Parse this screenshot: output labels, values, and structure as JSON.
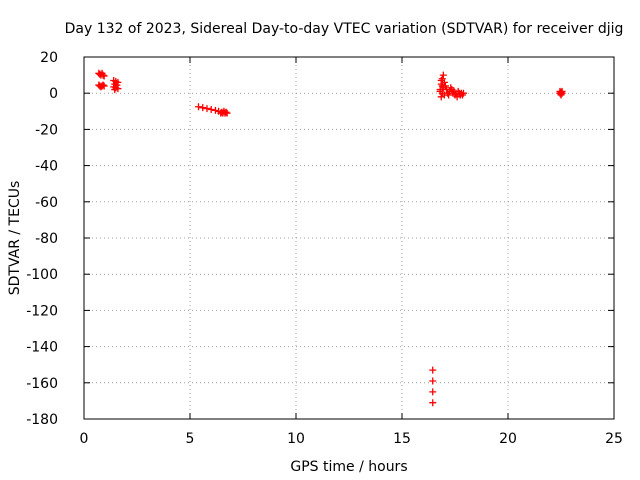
{
  "chart_data": {
    "type": "scatter",
    "title": "Day 132 of 2023, Sidereal Day-to-day VTEC variation (SDTVAR) for receiver djig",
    "xlabel": "GPS time / hours",
    "ylabel": "SDTVAR / TECUs",
    "xlim": [
      0,
      25
    ],
    "ylim": [
      -180,
      20
    ],
    "xticks": [
      "0",
      "5",
      "10",
      "15",
      "20",
      "25"
    ],
    "yticks": [
      "20",
      "0",
      "-20",
      "-40",
      "-60",
      "-80",
      "-100",
      "-120",
      "-140",
      "-160",
      "-180"
    ],
    "grid": true,
    "marker": "+",
    "color": "#ff0000",
    "series": [
      {
        "points": [
          [
            0.7,
            11
          ],
          [
            0.75,
            10.5
          ],
          [
            0.8,
            10
          ],
          [
            0.85,
            11
          ],
          [
            0.9,
            10
          ],
          [
            0.95,
            9.5
          ],
          [
            0.7,
            4.5
          ],
          [
            0.75,
            4
          ],
          [
            0.8,
            3.5
          ],
          [
            0.85,
            4
          ],
          [
            0.9,
            4.5
          ],
          [
            0.95,
            4
          ],
          [
            1.4,
            7
          ],
          [
            1.5,
            6.5
          ],
          [
            1.6,
            6
          ],
          [
            1.45,
            5
          ],
          [
            1.55,
            4.5
          ],
          [
            1.4,
            3.5
          ],
          [
            1.5,
            3
          ],
          [
            1.6,
            2.5
          ],
          [
            1.45,
            2
          ],
          [
            5.4,
            -7.5
          ],
          [
            5.6,
            -8
          ],
          [
            5.8,
            -8.5
          ],
          [
            6.0,
            -9
          ],
          [
            6.2,
            -9.5
          ],
          [
            6.35,
            -10
          ],
          [
            6.45,
            -11
          ],
          [
            6.5,
            -10.5
          ],
          [
            6.55,
            -11
          ],
          [
            6.6,
            -10
          ],
          [
            6.65,
            -11
          ],
          [
            6.7,
            -10.5
          ],
          [
            6.75,
            -11
          ],
          [
            16.45,
            -153
          ],
          [
            16.45,
            -159
          ],
          [
            16.45,
            -165
          ],
          [
            16.45,
            -171
          ],
          [
            16.8,
            2
          ],
          [
            16.85,
            5
          ],
          [
            16.9,
            8
          ],
          [
            16.95,
            10
          ],
          [
            16.85,
            7
          ],
          [
            16.9,
            4
          ],
          [
            16.95,
            3
          ],
          [
            16.8,
            1
          ],
          [
            16.9,
            0
          ],
          [
            17.0,
            -1
          ],
          [
            16.85,
            -2
          ],
          [
            17.0,
            6
          ],
          [
            17.05,
            4
          ],
          [
            17.1,
            2
          ],
          [
            17.15,
            0
          ],
          [
            17.2,
            -1
          ],
          [
            17.25,
            1
          ],
          [
            17.3,
            3
          ],
          [
            17.35,
            2
          ],
          [
            17.4,
            0
          ],
          [
            17.45,
            1
          ],
          [
            17.5,
            -1
          ],
          [
            17.55,
            0
          ],
          [
            17.6,
            -2
          ],
          [
            17.65,
            1
          ],
          [
            17.7,
            0
          ],
          [
            17.75,
            -1
          ],
          [
            17.8,
            0
          ],
          [
            17.85,
            -1
          ],
          [
            17.9,
            0
          ],
          [
            22.45,
            0
          ],
          [
            22.45,
            1
          ],
          [
            22.5,
            0.5
          ],
          [
            22.5,
            -0.5
          ],
          [
            22.55,
            0
          ],
          [
            22.5,
            -1
          ],
          [
            22.55,
            1
          ]
        ]
      }
    ]
  }
}
